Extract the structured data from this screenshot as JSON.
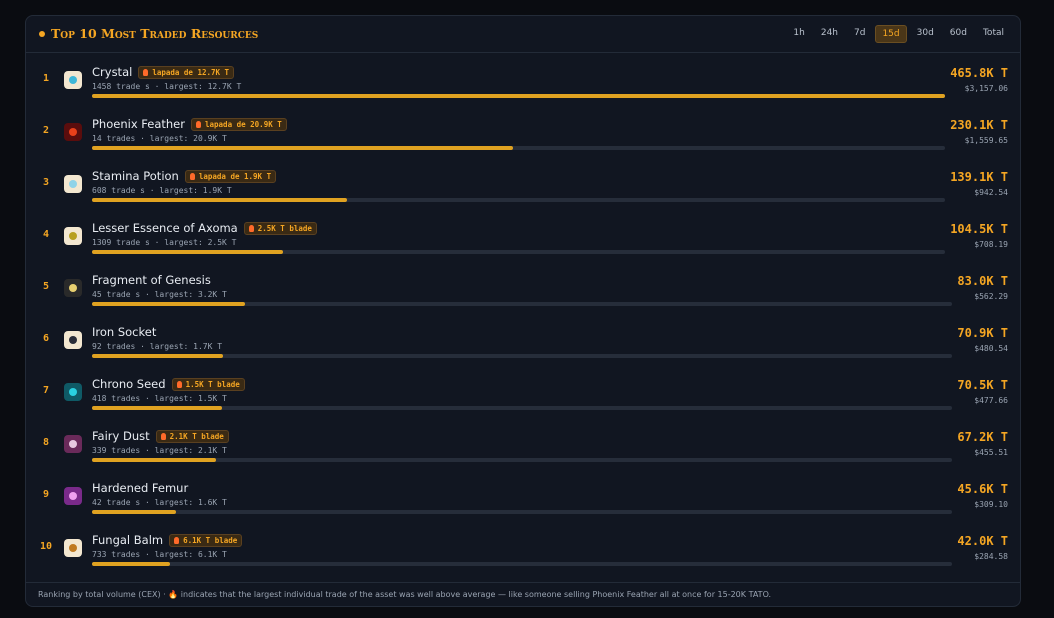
{
  "header": {
    "title": "Top 10 Most Traded Resources",
    "tabs": [
      "1h",
      "24h",
      "7d",
      "15d",
      "30d",
      "60d",
      "Total"
    ],
    "active_tab": "15d"
  },
  "rows": [
    {
      "rank": "1",
      "name": "Crystal",
      "badge": "lapada de 12.7K T",
      "trades": "1458 trade s · largest: 12.7K T",
      "volume": 465.8,
      "volume_label": "465.8K T",
      "usd": "$3,157.06"
    },
    {
      "rank": "2",
      "name": "Phoenix Feather",
      "badge": "lapada de 20.9K T",
      "trades": "14 trades · largest: 20.9K T",
      "volume": 230.1,
      "volume_label": "230.1K T",
      "usd": "$1,559.65"
    },
    {
      "rank": "3",
      "name": "Stamina Potion",
      "badge": "lapada de 1.9K T",
      "trades": "608 trade s · largest: 1.9K T",
      "volume": 139.1,
      "volume_label": "139.1K T",
      "usd": "$942.54"
    },
    {
      "rank": "4",
      "name": "Lesser Essence of Axoma",
      "badge": "2.5K T blade",
      "trades": "1309 trade s · largest: 2.5K T",
      "volume": 104.5,
      "volume_label": "104.5K T",
      "usd": "$708.19"
    },
    {
      "rank": "5",
      "name": "Fragment of Genesis",
      "badge": null,
      "trades": "45 trade s · largest: 3.2K T",
      "volume": 83.0,
      "volume_label": "83.0K T",
      "usd": "$562.29"
    },
    {
      "rank": "6",
      "name": "Iron Socket",
      "badge": null,
      "trades": "92 trades · largest: 1.7K T",
      "volume": 70.9,
      "volume_label": "70.9K T",
      "usd": "$480.54"
    },
    {
      "rank": "7",
      "name": "Chrono Seed",
      "badge": "1.5K T blade",
      "trades": "418 trades · largest: 1.5K T",
      "volume": 70.5,
      "volume_label": "70.5K T",
      "usd": "$477.66"
    },
    {
      "rank": "8",
      "name": "Fairy Dust",
      "badge": "2.1K T blade",
      "trades": "339 trades · largest: 2.1K T",
      "volume": 67.2,
      "volume_label": "67.2K T",
      "usd": "$455.51"
    },
    {
      "rank": "9",
      "name": "Hardened Femur",
      "badge": null,
      "trades": "42 trade s · largest: 1.6K T",
      "volume": 45.6,
      "volume_label": "45.6K T",
      "usd": "$309.10"
    },
    {
      "rank": "10",
      "name": "Fungal Balm",
      "badge": "6.1K T blade",
      "trades": "733 trades · largest: 6.1K T",
      "volume": 42.0,
      "volume_label": "42.0K T",
      "usd": "$284.58"
    }
  ],
  "footer": "Ranking by total volume (CEX) · 🔥 indicates that the largest individual trade of the asset was well above average — like someone selling Phoenix Feather all at once for 15-20K TATO."
}
